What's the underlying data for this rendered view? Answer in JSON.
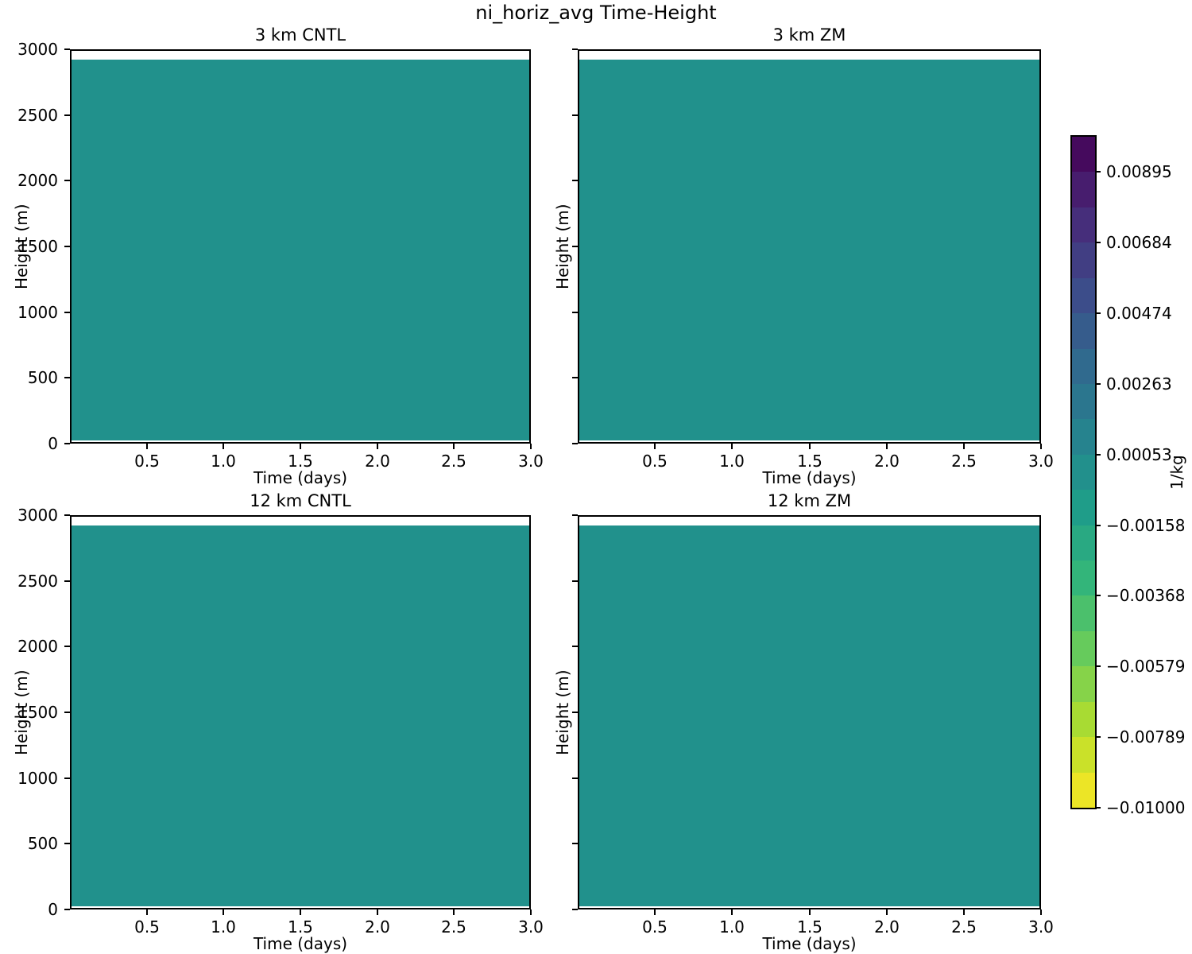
{
  "figure": {
    "title": "ni_horiz_avg Time-Height",
    "background": "#ffffff"
  },
  "subplots": [
    {
      "title": "3 km CNTL"
    },
    {
      "title": "3 km ZM"
    },
    {
      "title": "12 km CNTL"
    },
    {
      "title": "12 km ZM"
    }
  ],
  "axes": {
    "xlabel": "Time (days)",
    "ylabel": "Height (m)",
    "xlim": [
      0,
      3
    ],
    "ylim": [
      0,
      3000
    ],
    "x_tick_values": [
      0.5,
      1.0,
      1.5,
      2.0,
      2.5,
      3.0
    ],
    "x_tick_labels": [
      "0.5",
      "1.0",
      "1.5",
      "2.0",
      "2.5",
      "3.0"
    ],
    "y_tick_values": [
      0,
      500,
      1000,
      1500,
      2000,
      2500,
      3000
    ],
    "y_tick_labels": [
      "0",
      "500",
      "1000",
      "1500",
      "2000",
      "2500",
      "3000"
    ]
  },
  "colorbar": {
    "label": "1/kg",
    "vmin": -0.01,
    "vmax": 0.01,
    "n_bands": 19,
    "tick_labels_top_to_bottom": [
      "0.00895",
      "0.00684",
      "0.00474",
      "0.00263",
      "0.00053",
      "−0.00158",
      "−0.00368",
      "−0.00579",
      "−0.00789",
      "−0.01000"
    ],
    "band_colors_top_to_bottom": [
      "#450a5d",
      "#471d6e",
      "#462e7b",
      "#413e83",
      "#3c4d8a",
      "#365c8c",
      "#306a8e",
      "#2b768e",
      "#26838e",
      "#22908c",
      "#1f9d89",
      "#29a982",
      "#33b57a",
      "#4bc06c",
      "#66cb5c",
      "#86d349",
      "#a8db33",
      "#cae129",
      "#ece526"
    ]
  },
  "chart_data": {
    "type": "heatmap",
    "title": "ni_horiz_avg Time-Height",
    "panels": [
      "3 km CNTL",
      "3 km ZM",
      "12 km CNTL",
      "12 km ZM"
    ],
    "xlabel": "Time (days)",
    "ylabel": "Height (m)",
    "xlim": [
      0,
      3
    ],
    "ylim": [
      0,
      3000
    ],
    "x_ticks": [
      0.5,
      1.0,
      1.5,
      2.0,
      2.5,
      3.0
    ],
    "y_ticks": [
      0,
      500,
      1000,
      1500,
      2000,
      2500,
      3000
    ],
    "colorbar_label": "1/kg",
    "colorbar_ticks": [
      0.00895,
      0.00684,
      0.00474,
      0.00263,
      0.00053,
      -0.00158,
      -0.00368,
      -0.00579,
      -0.00789,
      -0.01
    ],
    "value_range": [
      -0.01,
      0.01
    ],
    "fill_color": "#21918c",
    "fill_top_height_m": 2920,
    "fill_bottom_height_m": 15,
    "field_description": "All four panels show a nearly uniform field of approximately 0 1/kg (within the contour band −0.00053 to 0.00053) from ~15 m up to ~2920 m; white above ~2920 m to 3000 m."
  }
}
